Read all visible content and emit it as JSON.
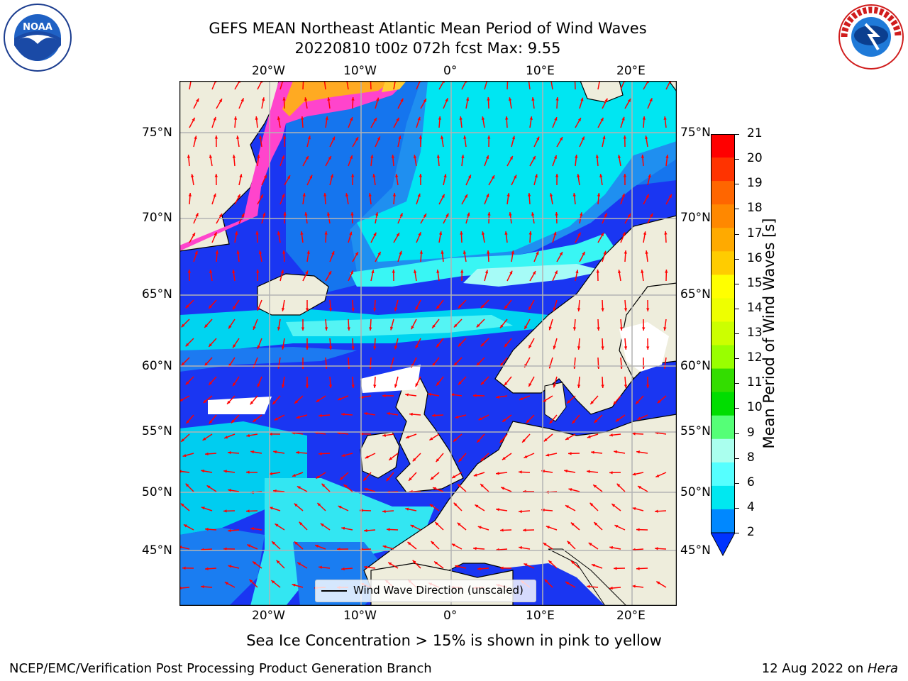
{
  "header": {
    "title_line1": "GEFS MEAN Northeast Atlantic Mean Period of Wind Waves",
    "title_line2": "20220810 t00z 072h fcst   Max: 9.55"
  },
  "logos": {
    "left": "NOAA",
    "right": "NATIONAL WEATHER SERVICE"
  },
  "map": {
    "lon_labels": [
      "20°W",
      "10°W",
      "0°",
      "10°E",
      "20°E"
    ],
    "lat_labels": [
      "75°N",
      "70°N",
      "65°N",
      "60°N",
      "55°N",
      "50°N",
      "45°N"
    ],
    "legend_label": "Wind Wave Direction (unscaled)",
    "arrow_color": "#ff0000"
  },
  "colorbar": {
    "label": "Mean Period of Wind Waves [s]",
    "ticks": [
      "21",
      "20",
      "19",
      "18",
      "17",
      "16",
      "15",
      "14",
      "13",
      "12",
      "11",
      "10",
      "9",
      "8",
      "6",
      "4",
      "2"
    ],
    "colors": [
      "#ff0000",
      "#ff3300",
      "#ff6600",
      "#ff8800",
      "#ffaa00",
      "#ffcc00",
      "#ffff00",
      "#eeff00",
      "#ccff00",
      "#99ff00",
      "#33dd00",
      "#00dd00",
      "#55ff77",
      "#aaffee",
      "#55ffff",
      "#00e8f0",
      "#0088ff"
    ],
    "extend_color": "#0033ff"
  },
  "footer": {
    "note": "Sea Ice Concentration > 15% is shown in pink to yellow",
    "left": "NCEP/EMC/Verification Post Processing Product Generation Branch",
    "right_date": "12 Aug 2022 on ",
    "right_host": "Hera"
  }
}
